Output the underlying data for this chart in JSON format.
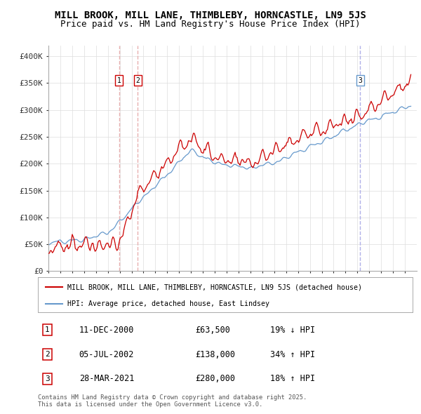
{
  "title_line1": "MILL BROOK, MILL LANE, THIMBLEBY, HORNCASTLE, LN9 5JS",
  "title_line2": "Price paid vs. HM Land Registry's House Price Index (HPI)",
  "title_fontsize": 10,
  "subtitle_fontsize": 9,
  "ylabel_ticks": [
    "£0",
    "£50K",
    "£100K",
    "£150K",
    "£200K",
    "£250K",
    "£300K",
    "£350K",
    "£400K"
  ],
  "ytick_values": [
    0,
    50000,
    100000,
    150000,
    200000,
    250000,
    300000,
    350000,
    400000
  ],
  "ylim": [
    0,
    420000
  ],
  "xlim_start": 1995.0,
  "xlim_end": 2026.0,
  "red_color": "#cc0000",
  "blue_color": "#6699cc",
  "vline_color_red": "#e8b0b0",
  "vline_color_blue": "#b0b0e8",
  "transaction_markers": [
    {
      "x": 2000.95,
      "label": "1",
      "y_marker": 350000
    },
    {
      "x": 2002.51,
      "label": "2",
      "y_marker": 350000
    },
    {
      "x": 2021.24,
      "label": "3",
      "y_marker": 350000
    }
  ],
  "legend_entries": [
    "MILL BROOK, MILL LANE, THIMBLEBY, HORNCASTLE, LN9 5JS (detached house)",
    "HPI: Average price, detached house, East Lindsey"
  ],
  "table_rows": [
    {
      "num": "1",
      "date": "11-DEC-2000",
      "price": "£63,500",
      "change": "19% ↓ HPI"
    },
    {
      "num": "2",
      "date": "05-JUL-2002",
      "price": "£138,000",
      "change": "34% ↑ HPI"
    },
    {
      "num": "3",
      "date": "28-MAR-2021",
      "price": "£280,000",
      "change": "18% ↑ HPI"
    }
  ],
  "footnote": "Contains HM Land Registry data © Crown copyright and database right 2025.\nThis data is licensed under the Open Government Licence v3.0.",
  "background_color": "#ffffff",
  "plot_bg_color": "#ffffff",
  "grid_color": "#dddddd"
}
